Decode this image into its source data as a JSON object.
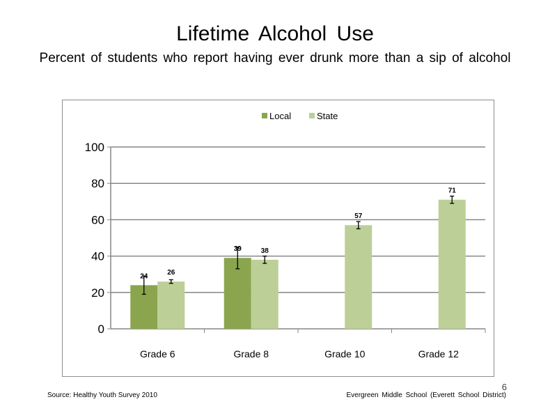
{
  "slide": {
    "title": "Lifetime  Alcohol  Use",
    "subtitle": "Percent  of students  who report having  ever drunk  more than  a sip of alcohol",
    "source": "Source: Healthy  Youth Survey 2010",
    "school": "Evergreen Middle  School  (Everett School District)",
    "page_number": "6"
  },
  "colors": {
    "local": "#8ba54f",
    "state": "#bccf97",
    "axis": "#868686",
    "grid": "#868686"
  },
  "chart_data": {
    "type": "bar",
    "title": "",
    "xlabel": "",
    "ylabel": "",
    "categories": [
      "Grade 6",
      "Grade 8",
      "Grade 10",
      "Grade 12"
    ],
    "ylim": [
      0,
      100
    ],
    "yticks": [
      0,
      20,
      40,
      60,
      80,
      100
    ],
    "grid": true,
    "legend_position": "top-center",
    "series": [
      {
        "name": "Local",
        "values": [
          24,
          39,
          null,
          null
        ],
        "labels": [
          "24",
          "39",
          "",
          ""
        ],
        "error_low": [
          19,
          33,
          null,
          null
        ],
        "error_high": [
          29,
          45,
          null,
          null
        ]
      },
      {
        "name": "State",
        "values": [
          26,
          38,
          57,
          71
        ],
        "labels": [
          "26",
          "38",
          "57",
          "71"
        ],
        "error_low": [
          25,
          36,
          55,
          69
        ],
        "error_high": [
          27,
          40,
          59,
          73
        ]
      }
    ]
  }
}
